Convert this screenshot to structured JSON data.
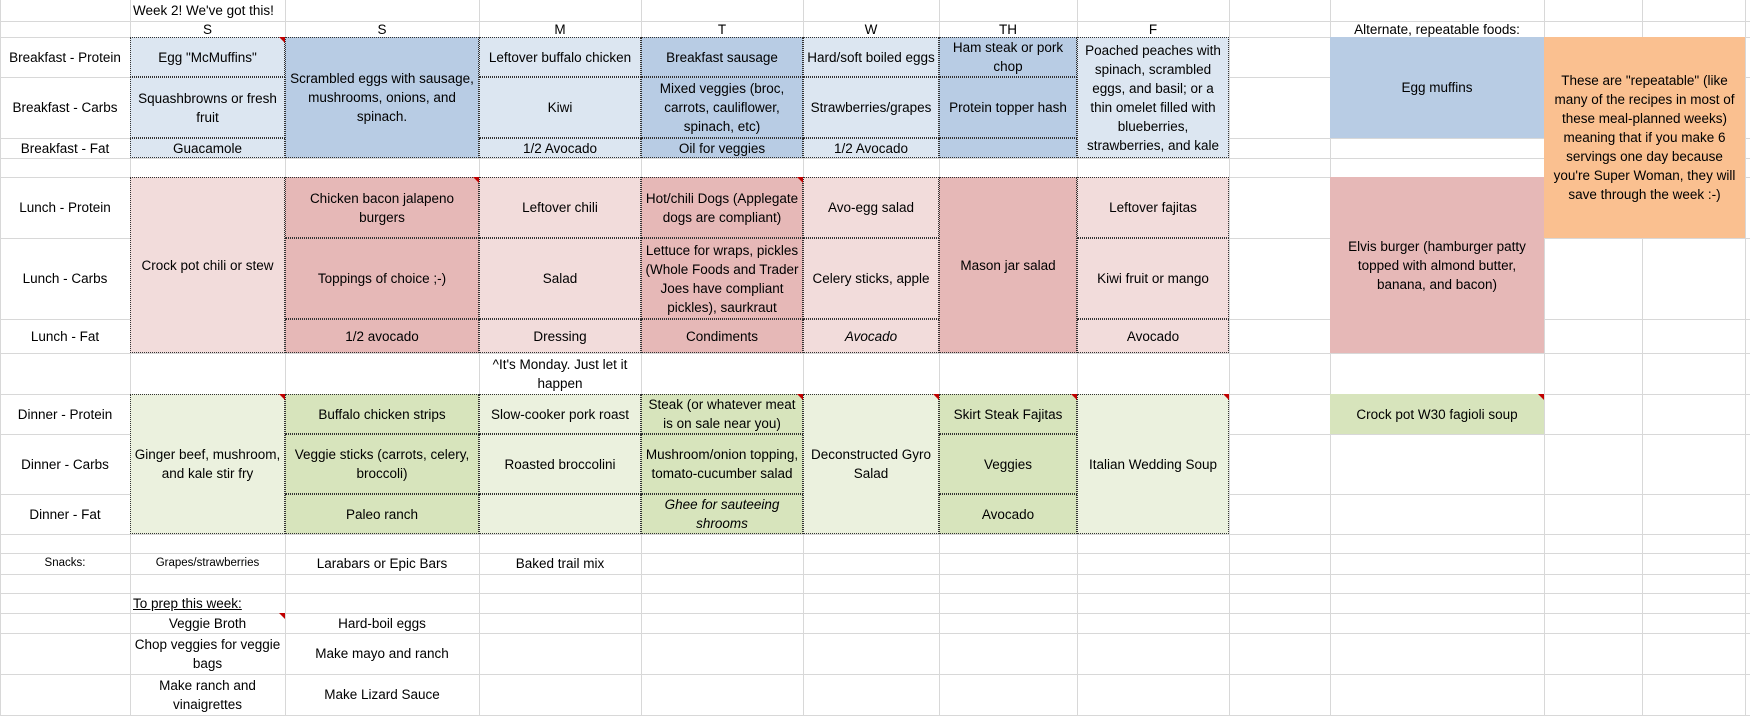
{
  "title": "Week 2! We've got this!",
  "days": [
    "S",
    "S",
    "M",
    "T",
    "W",
    "TH",
    "F"
  ],
  "row_labels": {
    "breakfast_protein": "Breakfast - Protein",
    "breakfast_carbs": "Breakfast - Carbs",
    "breakfast_fat": "Breakfast - Fat",
    "lunch_protein": "Lunch - Protein",
    "lunch_carbs": "Lunch - Carbs",
    "lunch_fat": "Lunch - Fat",
    "dinner_protein": "Dinner - Protein",
    "dinner_carbs": "Dinner - Carbs",
    "dinner_fat": "Dinner - Fat",
    "snacks": "Snacks:"
  },
  "breakfast": {
    "sun1_protein": "Egg \"McMuffins\"",
    "sun1_carbs": "Squashbrowns or fresh fruit",
    "sun1_fat": "Guacamole",
    "sun2_all": "Scrambled eggs with sausage, mushrooms, onions, and spinach.",
    "mon_protein": "Leftover buffalo chicken",
    "mon_carbs": "Kiwi",
    "mon_fat": "1/2 Avocado",
    "tue_protein": "Breakfast sausage",
    "tue_carbs": "Mixed veggies (broc, carrots, cauliflower, spinach, etc)",
    "tue_fat": "Oil for veggies",
    "wed_protein": "Hard/soft boiled eggs",
    "wed_carbs": "Strawberries/grapes",
    "wed_fat": "1/2 Avocado",
    "thu_protein": "Ham steak or pork chop",
    "thu_carbs": "Protein topper hash",
    "fri_all": "Poached peaches with spinach, scrambled eggs, and basil; or a thin omelet filled with blueberries, strawberries, and kale"
  },
  "lunch": {
    "sun1_all": "Crock pot chili or stew",
    "sun2_protein": "Chicken bacon jalapeno burgers",
    "sun2_carbs": "Toppings of choice ;-)",
    "sun2_fat": "1/2 avocado",
    "mon_protein": "Leftover chili",
    "mon_carbs": "Salad",
    "mon_fat": "Dressing",
    "tue_protein": "Hot/chili Dogs (Applegate dogs are compliant)",
    "tue_carbs": "Lettuce for wraps, pickles (Whole Foods and Trader Joes have compliant pickles), saurkraut",
    "tue_fat": "Condiments",
    "wed_protein": "Avo-egg salad",
    "wed_carbs": "Celery sticks, apple",
    "wed_fat": "Avocado",
    "thu_all": "Mason jar salad",
    "fri_protein": "Leftover fajitas",
    "fri_carbs": "Kiwi fruit or mango",
    "fri_fat": "Avocado"
  },
  "monday_note": "^It's Monday. Just let it happen",
  "dinner": {
    "sun1_all": "Ginger beef, mushroom, and kale stir fry",
    "sun2_protein": "Buffalo chicken strips",
    "sun2_carbs": "Veggie sticks (carrots, celery, broccoli)",
    "sun2_fat": "Paleo ranch",
    "mon_protein": "Slow-cooker pork roast",
    "mon_carbs": "Roasted broccolini",
    "tue_protein": "Steak (or whatever meat is on sale near you)",
    "tue_carbs": "Mushroom/onion topping, tomato-cucumber salad",
    "tue_fat": "Ghee for sauteeing shrooms",
    "wed_all": "Deconstructed Gyro Salad",
    "thu_protein": "Skirt Steak Fajitas",
    "thu_carbs": "Veggies",
    "thu_fat": "Avocado",
    "fri_all": "Italian Wedding Soup"
  },
  "snacks": {
    "sun1": "Grapes/strawberries",
    "sun2": "Larabars or Epic Bars",
    "mon": "Baked trail mix"
  },
  "prep": {
    "header": "To prep this week:",
    "col1": [
      "Veggie Broth",
      "Chop veggies for veggie bags",
      "Make ranch and vinaigrettes"
    ],
    "col2": [
      "Hard-boil eggs",
      "Make mayo and ranch",
      "Make Lizard Sauce"
    ]
  },
  "alternates": {
    "header": "Alternate, repeatable foods:",
    "egg_muffins": "Egg muffins",
    "note": "These are \"repeatable\" (like many of the recipes in most of these meal-planned weeks) meaning that if you make 6 servings one day because you're Super Woman, they will save through the week :-)",
    "elvis_burger": "Elvis burger (hamburger patty topped with almond butter, banana, and bacon)",
    "fagioli_soup": "Crock pot W30 fagioli soup"
  },
  "colors": {
    "breakfast_light": "#dce6f1",
    "breakfast_dark": "#b8cce4",
    "lunch_light": "#f2dcdb",
    "lunch_dark": "#e6b8b7",
    "dinner_light": "#ebf1de",
    "dinner_dark": "#d7e4bc",
    "note_orange": "#fac090",
    "comment_marker": "#c00000"
  }
}
